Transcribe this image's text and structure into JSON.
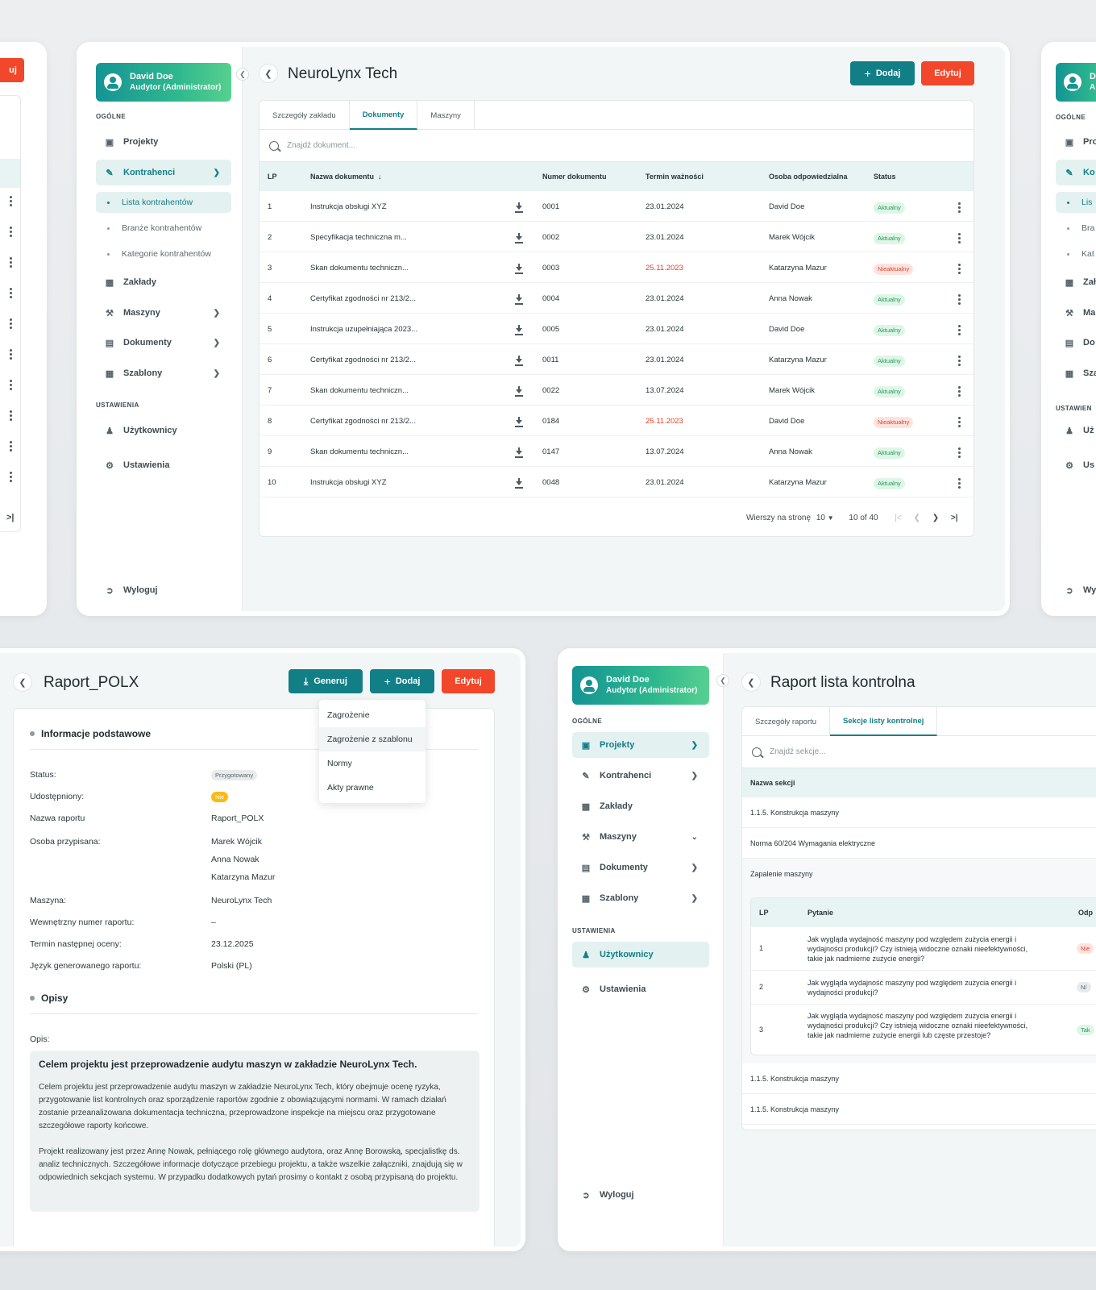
{
  "user": {
    "name": "David Doe",
    "role": "Audytor (Administrator)"
  },
  "nav": {
    "section_general": "OGÓLNE",
    "section_settings": "USTAWIENIA",
    "projekty": "Projekty",
    "kontrahenci": "Kontrahenci",
    "lista_kontrahentow": "Lista kontrahentów",
    "branze_kontrahentow": "Branże kontrahentów",
    "kategorie_kontrahentow": "Kategorie kontrahentów",
    "zaklady": "Zakłady",
    "maszyny": "Maszyny",
    "dokumenty": "Dokumenty",
    "szablony": "Szablony",
    "uzytkownicy": "Użytkownicy",
    "ustawienia": "Ustawienia",
    "wyloguj": "Wyloguj"
  },
  "buttons": {
    "dodaj": "Dodaj",
    "edytuj": "Edytuj",
    "generuj": "Generuj"
  },
  "ghost": {
    "left_btn": "uj",
    "right_header": "D",
    "right_role": "A",
    "right_items": [
      "Pro",
      "Ko",
      "Lis",
      "Bra",
      "Kat",
      "Zał",
      "Ma",
      "Do",
      "Sza",
      "Uż",
      "Us",
      "Wy"
    ],
    "right_section": "USTAWIEN"
  },
  "main": {
    "title": "NeuroLynx Tech",
    "tabs": [
      "Szczegóły zakładu",
      "Dokumenty",
      "Maszyny"
    ],
    "search_placeholder": "Znajdź dokument...",
    "columns": {
      "lp": "LP",
      "name": "Nazwa dokumentu",
      "number": "Numer dokumentu",
      "valid": "Termin ważności",
      "person": "Osoba odpowiedzialna",
      "status": "Status"
    },
    "rows": [
      {
        "lp": "1",
        "name": "Instrukcja obsługi XYZ",
        "number": "0001",
        "valid": "23.01.2024",
        "person": "David Doe",
        "status": "Aktualny",
        "ok": true
      },
      {
        "lp": "2",
        "name": "Specyfikacja techniczna m...",
        "number": "0002",
        "valid": "23.01.2024",
        "person": "Marek Wójcik",
        "status": "Aktualny",
        "ok": true
      },
      {
        "lp": "3",
        "name": "Skan dokumentu techniczn...",
        "number": "0003",
        "valid": "25.11.2023",
        "person": "Katarzyna Mazur",
        "status": "Nieaktualny",
        "ok": false
      },
      {
        "lp": "4",
        "name": "Certyfikat zgodności nr 213/2...",
        "number": "0004",
        "valid": "23.01.2024",
        "person": "Anna Nowak",
        "status": "Aktualny",
        "ok": true
      },
      {
        "lp": "5",
        "name": "Instrukcja uzupełniająca 2023...",
        "number": "0005",
        "valid": "23.01.2024",
        "person": "David Doe",
        "status": "Aktualny",
        "ok": true
      },
      {
        "lp": "6",
        "name": "Certyfikat zgodności nr 213/2...",
        "number": "0011",
        "valid": "23.01.2024",
        "person": "Katarzyna Mazur",
        "status": "Aktualny",
        "ok": true
      },
      {
        "lp": "7",
        "name": "Skan dokumentu techniczn...",
        "number": "0022",
        "valid": "13.07.2024",
        "person": "Marek Wójcik",
        "status": "Aktualny",
        "ok": true
      },
      {
        "lp": "8",
        "name": "Certyfikat zgodności nr 213/2...",
        "number": "0184",
        "valid": "25.11.2023",
        "person": "David Doe",
        "status": "Nieaktualny",
        "ok": false
      },
      {
        "lp": "9",
        "name": "Skan dokumentu techniczn...",
        "number": "0147",
        "valid": "13.07.2024",
        "person": "Anna Nowak",
        "status": "Aktualny",
        "ok": true
      },
      {
        "lp": "10",
        "name": "Instrukcja obsługi XYZ",
        "number": "0048",
        "valid": "23.01.2024",
        "person": "Katarzyna Mazur",
        "status": "Aktualny",
        "ok": true
      }
    ],
    "pager": {
      "rows_label": "Wierszy na stronę",
      "rows_value": "10",
      "range": "10 of 40"
    }
  },
  "report": {
    "title": "Raport_POLX",
    "dropdown": [
      "Zagrożenie",
      "Zagrożenie z szablonu",
      "Normy",
      "Akty prawne"
    ],
    "section_basic": "Informacje podstawowe",
    "fields": {
      "status_label": "Status:",
      "status_value": "Przygotowany",
      "shared_label": "Udostępniony:",
      "shared_value": "Nie",
      "name_label": "Nazwa raportu",
      "name_value": "Raport_POLX",
      "person_label": "Osoba przypisana:",
      "persons": [
        "Marek Wójcik",
        "Anna Nowak",
        "Katarzyna Mazur"
      ],
      "machine_label": "Maszyna:",
      "machine_value": "NeuroLynx Tech",
      "internal_label": "Wewnętrzny numer raportu:",
      "internal_value": "–",
      "next_label": "Termin następnej oceny:",
      "next_value": "23.12.2025",
      "lang_label": "Język generowanego raportu:",
      "lang_value": "Polski (PL)"
    },
    "section_desc": "Opisy",
    "desc_label": "Opis:",
    "desc_heading": "Celem projektu jest przeprowadzenie audytu maszyn w zakładzie NeuroLynx Tech.",
    "desc_p1": "Celem projektu jest przeprowadzenie audytu maszyn w zakładzie NeuroLynx Tech, który obejmuje ocenę ryzyka, przygotowanie list kontrolnych oraz sporządzenie raportów zgodnie z obowiązującymi normami. W ramach działań zostanie przeanalizowana dokumentacja techniczna, przeprowadzone inspekcje na miejscu oraz przygotowane szczegółowe raporty końcowe.",
    "desc_p2": "Projekt realizowany jest przez Annę Nowak, pełniącego rolę głównego audytora, oraz Annę Borowską, specjalistkę ds. analiz technicznych. Szczegółowe informacje dotyczące przebiegu projektu, a także wszelkie załączniki, znajdują się w odpowiednich sekcjach systemu. W przypadku dodatkowych pytań prosimy o kontakt z osobą przypisaną do projektu."
  },
  "checklist": {
    "title": "Raport lista kontrolna",
    "tabs": [
      "Szczegóły raportu",
      "Sekcje listy kontrolnej"
    ],
    "search_placeholder": "Znajdź sekcje...",
    "col_section": "Nazwa sekcji",
    "sections": [
      "1.1.5. Konstrukcja maszyny",
      "Norma 60/204 Wymagania elektryczne",
      "Zapalenie maszyny"
    ],
    "q_cols": {
      "lp": "LP",
      "question": "Pytanie",
      "answer": "Odp"
    },
    "questions": [
      {
        "lp": "1",
        "text": "Jak wygląda wydajność maszyny pod względem zużycia energii i wydajności produkcji? Czy istnieją widoczne oznaki nieefektywności, takie jak nadmierne zużycie energii?",
        "ans": "Nie"
      },
      {
        "lp": "2",
        "text": "Jak wygląda wydajność maszyny pod względem zużycia energii i wydajności produkcji?",
        "ans": "N/"
      },
      {
        "lp": "3",
        "text": "Jak wygląda wydajność maszyny pod względem zużycia energii i wydajności produkcji? Czy istnieją widoczne oznaki nieefektywności, takie jak nadmierne zużycie energii lub częste przestoje?",
        "ans": "Tak"
      }
    ],
    "sections_after": [
      "1.1.5. Konstrukcja maszyny",
      "1.1.5. Konstrukcja maszyny"
    ]
  },
  "colors": {
    "accent": "#127f87",
    "danger": "#f2472a",
    "ok": "#1f9a56"
  }
}
